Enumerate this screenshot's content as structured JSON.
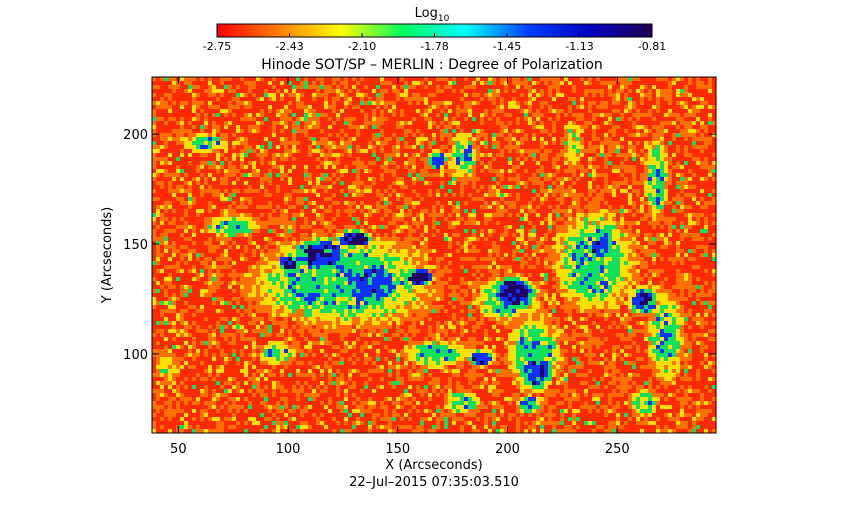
{
  "chart_data": {
    "type": "heatmap",
    "title": "Hinode SOT/SP – MERLIN : Degree of Polarization",
    "xlabel": "X (Arcseconds)",
    "ylabel": "Y (Arcseconds)",
    "timestamp": "22–Jul–2015 07:35:03.510",
    "xlim": [
      38,
      295
    ],
    "ylim": [
      64,
      226
    ],
    "xticks": [
      50,
      100,
      150,
      200,
      250
    ],
    "yticks": [
      100,
      150,
      200
    ],
    "colorbar": {
      "label_base": "Log",
      "label_sub": "10",
      "ticks": [
        "-2.75",
        "-2.43",
        "-2.10",
        "-1.78",
        "-1.45",
        "-1.13",
        "-0.81"
      ],
      "range": [
        -2.75,
        -0.81
      ],
      "colormap": [
        "#ff0000",
        "#ff8000",
        "#ffff00",
        "#00ff60",
        "#00ffff",
        "#0040ff",
        "#0000c0",
        "#200050"
      ]
    },
    "colors": {
      "background_field": "#ff2a00",
      "plage": "#00e060",
      "network": "#1030ff",
      "strong_field": "#200060"
    },
    "regions": [
      {
        "name": "central-plage",
        "x": 125,
        "y": 133,
        "rx": 40,
        "ry": 20,
        "level": 3
      },
      {
        "name": "central-core-1",
        "x": 115,
        "y": 145,
        "rx": 14,
        "ry": 8,
        "level": 4
      },
      {
        "name": "central-core-2",
        "x": 138,
        "y": 132,
        "rx": 14,
        "ry": 10,
        "level": 4
      },
      {
        "name": "central-core-3",
        "x": 100,
        "y": 141,
        "rx": 4,
        "ry": 4,
        "level": 5
      },
      {
        "name": "central-core-4",
        "x": 113,
        "y": 146,
        "rx": 5,
        "ry": 4,
        "level": 5
      },
      {
        "name": "central-core-5",
        "x": 160,
        "y": 135,
        "rx": 6,
        "ry": 4,
        "level": 5
      },
      {
        "name": "central-core-6",
        "x": 130,
        "y": 152,
        "rx": 8,
        "ry": 4,
        "level": 5
      },
      {
        "name": "right-blob",
        "x": 203,
        "y": 128,
        "rx": 9,
        "ry": 7,
        "level": 5
      },
      {
        "name": "right-ring",
        "x": 200,
        "y": 125,
        "rx": 14,
        "ry": 10,
        "level": 3
      },
      {
        "name": "lower-channel",
        "x": 212,
        "y": 100,
        "rx": 12,
        "ry": 16,
        "level": 3
      },
      {
        "name": "lower-channel-core",
        "x": 213,
        "y": 92,
        "rx": 7,
        "ry": 9,
        "level": 4
      },
      {
        "name": "lower-foot",
        "x": 210,
        "y": 77,
        "rx": 5,
        "ry": 4,
        "level": 4
      },
      {
        "name": "right-network",
        "x": 240,
        "y": 142,
        "rx": 18,
        "ry": 22,
        "level": 3
      },
      {
        "name": "right-network-core",
        "x": 242,
        "y": 148,
        "rx": 6,
        "ry": 5,
        "level": 4
      },
      {
        "name": "far-right-blob",
        "x": 262,
        "y": 124,
        "rx": 7,
        "ry": 6,
        "level": 4
      },
      {
        "name": "far-right-core",
        "x": 262,
        "y": 125,
        "rx": 3,
        "ry": 3,
        "level": 5
      },
      {
        "name": "far-right-strand",
        "x": 272,
        "y": 108,
        "rx": 8,
        "ry": 18,
        "level": 3
      },
      {
        "name": "top-right-strand",
        "x": 268,
        "y": 180,
        "rx": 5,
        "ry": 18,
        "level": 3
      },
      {
        "name": "upper-left-strand",
        "x": 62,
        "y": 196,
        "rx": 10,
        "ry": 4,
        "level": 3
      },
      {
        "name": "left-mid-strand",
        "x": 75,
        "y": 158,
        "rx": 12,
        "ry": 5,
        "level": 3
      },
      {
        "name": "lower-left-patch",
        "x": 95,
        "y": 100,
        "rx": 8,
        "ry": 5,
        "level": 3
      },
      {
        "name": "bottom-mid-patch",
        "x": 180,
        "y": 78,
        "rx": 8,
        "ry": 5,
        "level": 3
      },
      {
        "name": "bottom-right-patch",
        "x": 262,
        "y": 78,
        "rx": 6,
        "ry": 6,
        "level": 3
      },
      {
        "name": "upper-mid-strand",
        "x": 180,
        "y": 190,
        "rx": 6,
        "ry": 10,
        "level": 3
      },
      {
        "name": "upper-mid-dot",
        "x": 168,
        "y": 188,
        "rx": 4,
        "ry": 4,
        "level": 4
      },
      {
        "name": "left-edge-strand",
        "x": 45,
        "y": 95,
        "rx": 5,
        "ry": 8,
        "level": 2
      },
      {
        "name": "mid-lower-strand",
        "x": 168,
        "y": 100,
        "rx": 14,
        "ry": 6,
        "level": 3
      },
      {
        "name": "mid-lower-core",
        "x": 188,
        "y": 98,
        "rx": 6,
        "ry": 4,
        "level": 4
      },
      {
        "name": "upper-right-strand",
        "x": 230,
        "y": 195,
        "rx": 5,
        "ry": 12,
        "level": 2
      }
    ]
  }
}
